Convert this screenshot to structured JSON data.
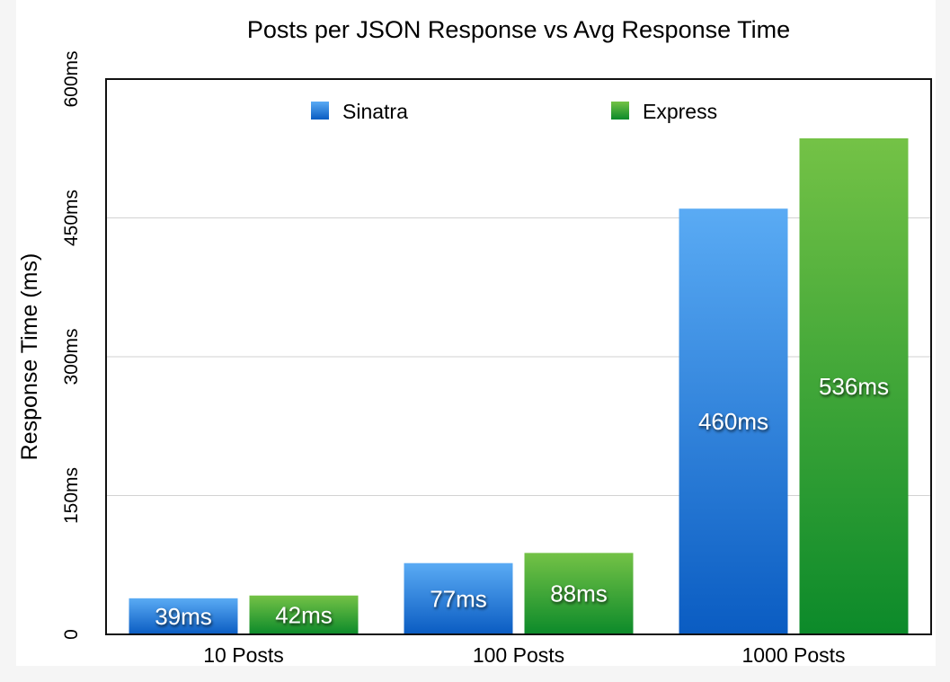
{
  "chart_data": {
    "type": "bar",
    "title": "Posts per JSON Response vs Avg Response Time",
    "ylabel": "Response Time (ms)",
    "xlabel": "",
    "categories": [
      "10 Posts",
      "100 Posts",
      "1000 Posts"
    ],
    "series": [
      {
        "name": "Sinatra",
        "values": [
          39,
          77,
          460
        ],
        "labels": [
          "39ms",
          "77ms",
          "460ms"
        ],
        "color_top": "#5aabf4",
        "color_bottom": "#0a5cc2"
      },
      {
        "name": "Express",
        "values": [
          42,
          88,
          536
        ],
        "labels": [
          "42ms",
          "88ms",
          "536ms"
        ],
        "color_top": "#74c246",
        "color_bottom": "#0c8a2a"
      }
    ],
    "ylim": [
      0,
      600
    ],
    "yticks": [
      0,
      150,
      300,
      450,
      600
    ],
    "ytick_labels": [
      "0",
      "150ms",
      "300ms",
      "450ms",
      "600ms"
    ],
    "grid": true,
    "legend": "top"
  }
}
